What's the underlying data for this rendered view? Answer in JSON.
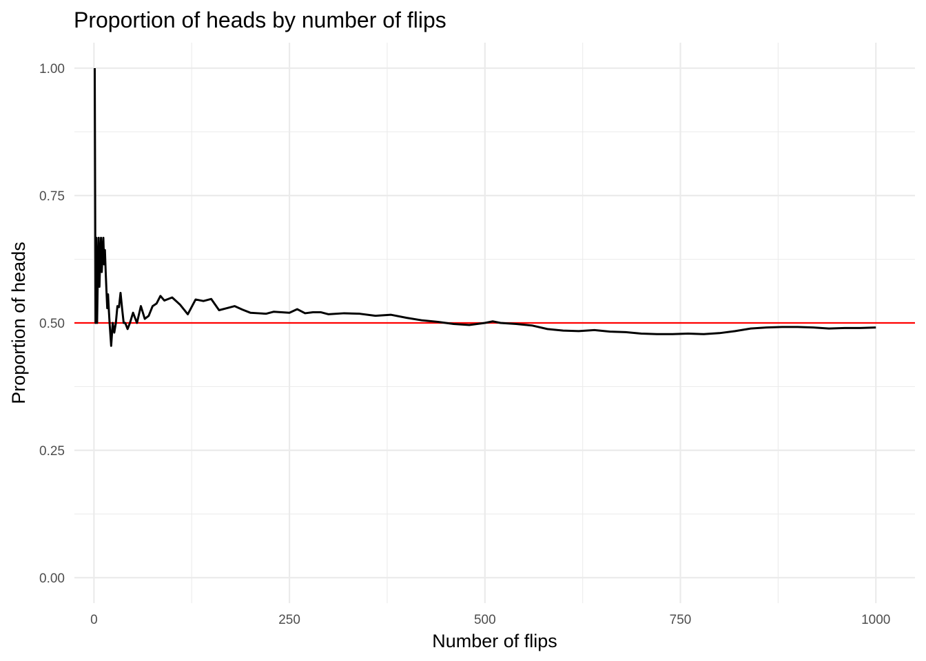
{
  "chart_data": {
    "type": "line",
    "title": "Proportion of heads by number of flips",
    "xlabel": "Number of flips",
    "ylabel": "Proportion of heads",
    "xlim": [
      -25,
      1050
    ],
    "ylim": [
      -0.05,
      1.05
    ],
    "x_ticks": [
      0,
      250,
      500,
      750,
      1000
    ],
    "x_tick_labels": [
      "0",
      "250",
      "500",
      "750",
      "1000"
    ],
    "y_ticks": [
      0,
      0.25,
      0.5,
      0.75,
      1.0
    ],
    "y_tick_labels": [
      "0.00",
      "0.25",
      "0.50",
      "0.75",
      "1.00"
    ],
    "grid": true,
    "reference_line": {
      "y": 0.5,
      "color": "#ff0000"
    },
    "series": [
      {
        "color": "#000000",
        "x": [
          1,
          2,
          3,
          4,
          5,
          6,
          7,
          8,
          9,
          10,
          11,
          12,
          13,
          14,
          15,
          16,
          17,
          18,
          19,
          20,
          22,
          24,
          26,
          28,
          30,
          32,
          34,
          36,
          38,
          40,
          43,
          46,
          50,
          55,
          60,
          65,
          70,
          75,
          80,
          85,
          90,
          95,
          100,
          110,
          120,
          130,
          140,
          150,
          160,
          170,
          180,
          190,
          200,
          210,
          220,
          230,
          240,
          250,
          260,
          270,
          280,
          290,
          300,
          320,
          340,
          360,
          380,
          400,
          420,
          440,
          460,
          480,
          500,
          510,
          520,
          540,
          560,
          580,
          600,
          620,
          640,
          660,
          680,
          700,
          720,
          740,
          760,
          780,
          800,
          820,
          840,
          860,
          880,
          900,
          920,
          940,
          960,
          980,
          1000
        ],
        "y": [
          1.0,
          0.5,
          0.667,
          0.5,
          0.6,
          0.667,
          0.571,
          0.625,
          0.667,
          0.6,
          0.636,
          0.667,
          0.615,
          0.643,
          0.6,
          0.563,
          0.529,
          0.556,
          0.526,
          0.5,
          0.455,
          0.5,
          0.481,
          0.5,
          0.533,
          0.531,
          0.559,
          0.528,
          0.5,
          0.5,
          0.488,
          0.5,
          0.52,
          0.5,
          0.533,
          0.508,
          0.514,
          0.533,
          0.538,
          0.553,
          0.544,
          0.547,
          0.55,
          0.536,
          0.517,
          0.546,
          0.543,
          0.547,
          0.525,
          0.529,
          0.533,
          0.526,
          0.52,
          0.519,
          0.518,
          0.522,
          0.521,
          0.52,
          0.527,
          0.519,
          0.521,
          0.521,
          0.517,
          0.519,
          0.518,
          0.514,
          0.516,
          0.51,
          0.505,
          0.502,
          0.498,
          0.496,
          0.5,
          0.503,
          0.5,
          0.498,
          0.495,
          0.488,
          0.485,
          0.484,
          0.486,
          0.483,
          0.482,
          0.479,
          0.478,
          0.478,
          0.479,
          0.478,
          0.48,
          0.484,
          0.489,
          0.491,
          0.492,
          0.492,
          0.491,
          0.489,
          0.49,
          0.49,
          0.491
        ]
      }
    ]
  }
}
